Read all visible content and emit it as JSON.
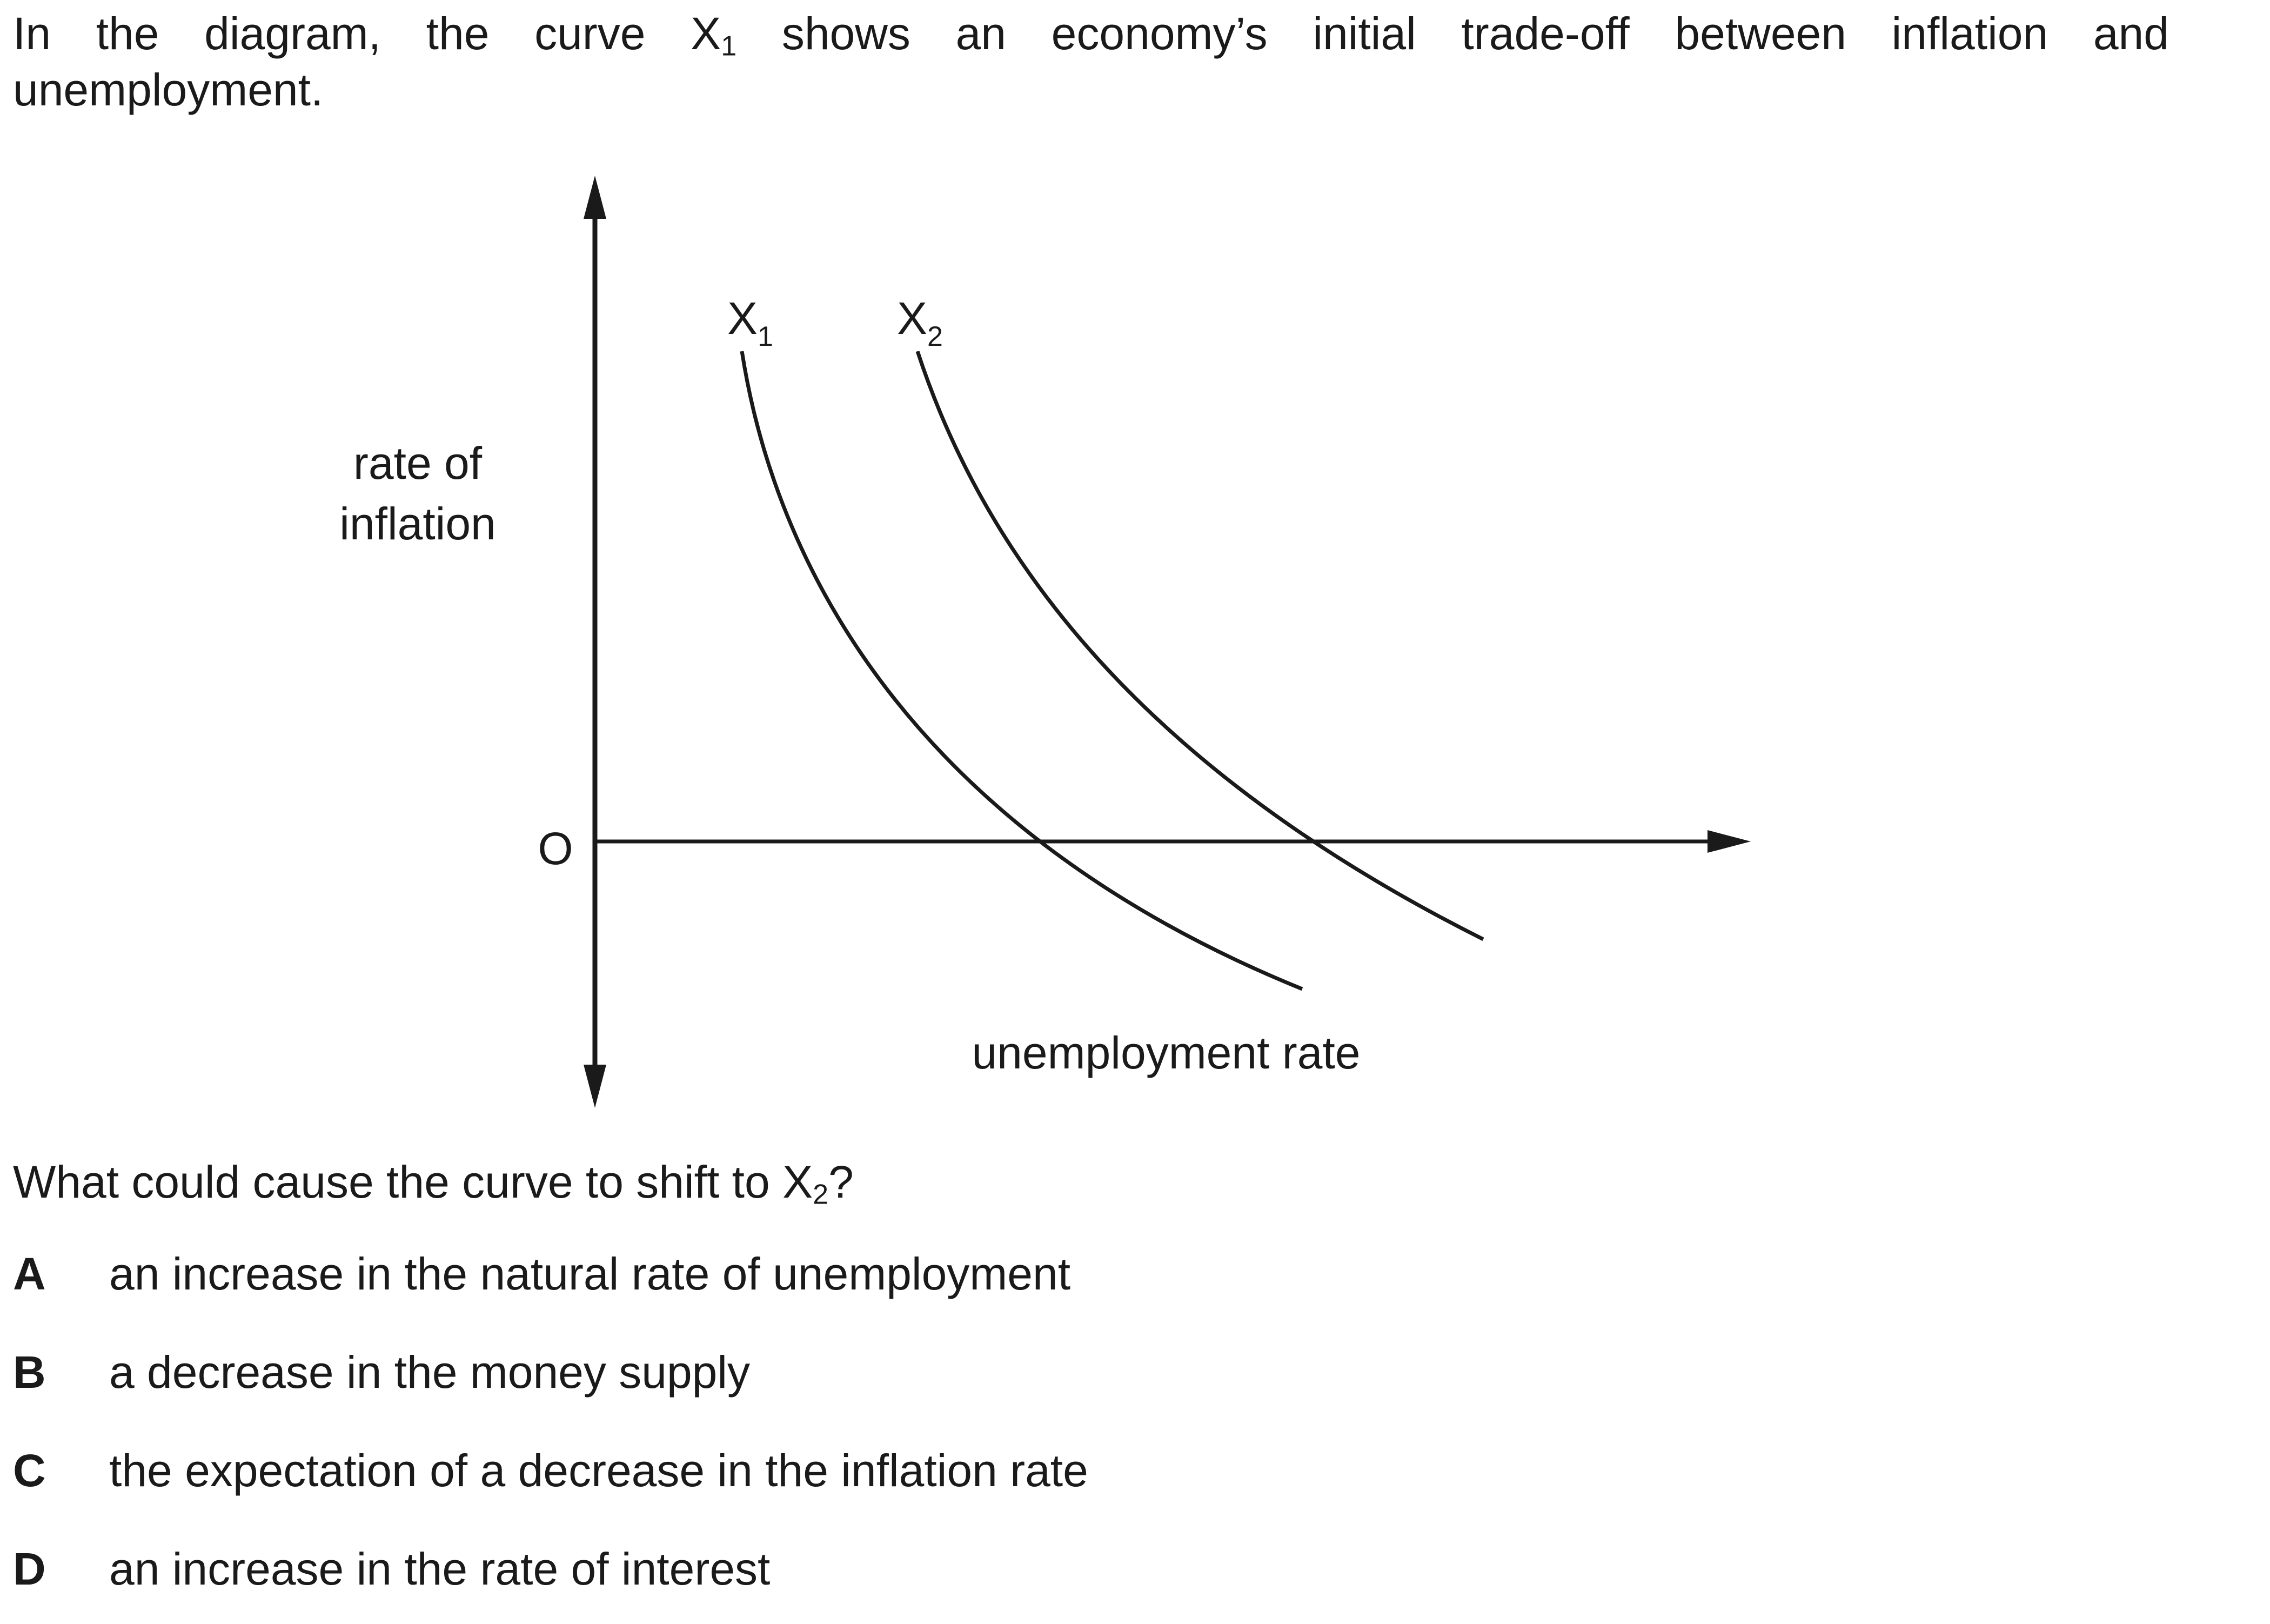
{
  "intro": {
    "line1_before": "In the diagram, the curve X",
    "line1_sub": "1",
    "line1_after": " shows an economy’s initial trade-off between inflation and",
    "line2": "unemployment."
  },
  "diagram": {
    "y_axis_label_line1": "rate of",
    "y_axis_label_line2": "inflation",
    "origin_label": "O",
    "x_axis_label": "unemployment rate",
    "curves": [
      {
        "name": "X",
        "sub": "1"
      },
      {
        "name": "X",
        "sub": "2"
      }
    ],
    "stroke_color": "#1a1a1a"
  },
  "question": {
    "before": "What could cause the curve to shift to X",
    "sub": "2",
    "after": "?"
  },
  "options": [
    {
      "letter": "A",
      "text": "an increase in the natural rate of unemployment"
    },
    {
      "letter": "B",
      "text": "a decrease in the money supply"
    },
    {
      "letter": "C",
      "text": "the expectation of a decrease in the inflation rate"
    },
    {
      "letter": "D",
      "text": "an increase in the rate of interest"
    }
  ]
}
